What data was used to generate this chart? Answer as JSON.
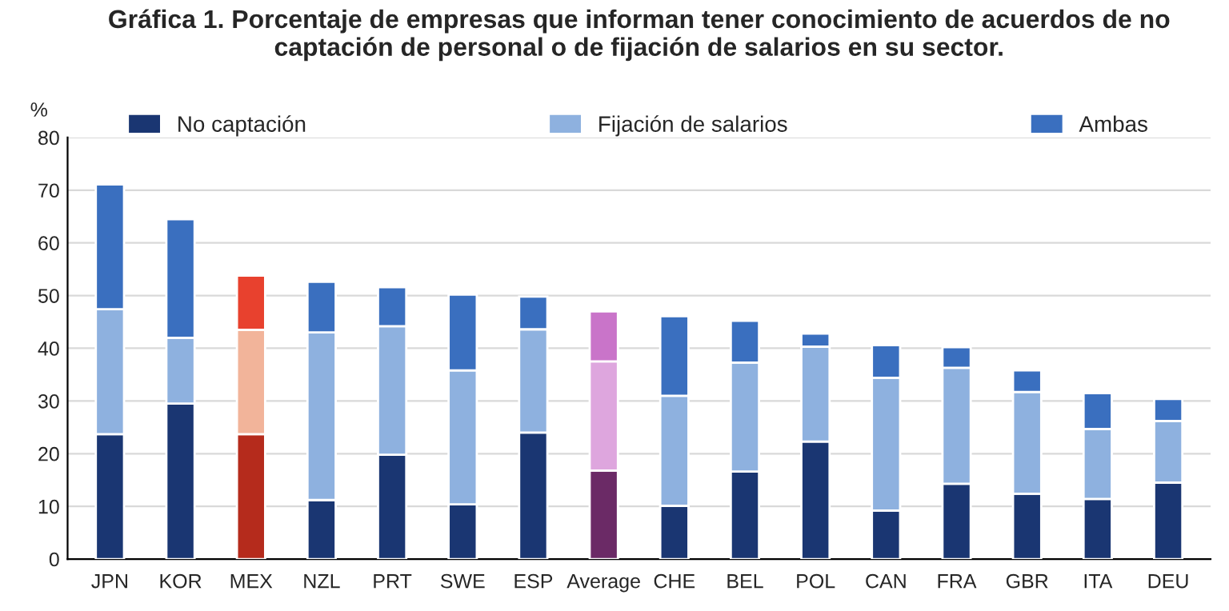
{
  "chart_data": {
    "type": "bar",
    "title": "Gráfica 1. Porcentaje de empresas que informan tener conocimiento de acuerdos de no captación de personal o de fijación de salarios en su sector.",
    "ylabel": "%",
    "categories": [
      "JPN",
      "KOR",
      "MEX",
      "NZL",
      "PRT",
      "SWE",
      "ESP",
      "Average",
      "CHE",
      "BEL",
      "POL",
      "CAN",
      "FRA",
      "GBR",
      "ITA",
      "DEU"
    ],
    "stacked": true,
    "ylim": [
      0,
      80
    ],
    "yticks": [
      0,
      10,
      20,
      30,
      40,
      50,
      60,
      70,
      80
    ],
    "grid": "y",
    "legend": "top",
    "series": [
      {
        "name": "No captación",
        "color": "#1a3672",
        "colors": [
          "#1a3672",
          "#1a3672",
          "#b52b1c",
          "#1a3672",
          "#1a3672",
          "#1a3672",
          "#1a3672",
          "#6b2a66",
          "#1a3672",
          "#1a3672",
          "#1a3672",
          "#1a3672",
          "#1a3672",
          "#1a3672",
          "#1a3672",
          "#1a3672"
        ],
        "values": [
          23.7,
          29.5,
          23.7,
          11.2,
          19.8,
          10.4,
          24,
          16.8,
          10.1,
          16.6,
          22.3,
          9.2,
          14.3,
          12.4,
          11.4,
          14.5
        ]
      },
      {
        "name": "Fijación de salarios",
        "color": "#8eb1df",
        "colors": [
          "#8eb1df",
          "#8eb1df",
          "#f2b49a",
          "#8eb1df",
          "#8eb1df",
          "#8eb1df",
          "#8eb1df",
          "#dea6de",
          "#8eb1df",
          "#8eb1df",
          "#8eb1df",
          "#8eb1df",
          "#8eb1df",
          "#8eb1df",
          "#8eb1df",
          "#8eb1df"
        ],
        "values": [
          23.7,
          12.5,
          19.8,
          31.8,
          24.4,
          25.4,
          19.6,
          20.7,
          20.9,
          20.7,
          18,
          25.2,
          22,
          19.3,
          13.3,
          11.7
        ]
      },
      {
        "name": "Ambas",
        "color": "#3a6fbf",
        "colors": [
          "#3a6fbf",
          "#3a6fbf",
          "#e8412e",
          "#3a6fbf",
          "#3a6fbf",
          "#3a6fbf",
          "#3a6fbf",
          "#c974c9",
          "#3a6fbf",
          "#3a6fbf",
          "#3a6fbf",
          "#3a6fbf",
          "#3a6fbf",
          "#3a6fbf",
          "#3a6fbf",
          "#3a6fbf"
        ],
        "values": [
          23.7,
          22.5,
          10.3,
          9.6,
          7.4,
          14.4,
          6.2,
          9.5,
          15.1,
          7.9,
          2.5,
          6.2,
          3.9,
          4.1,
          6.8,
          4.2
        ]
      }
    ]
  }
}
